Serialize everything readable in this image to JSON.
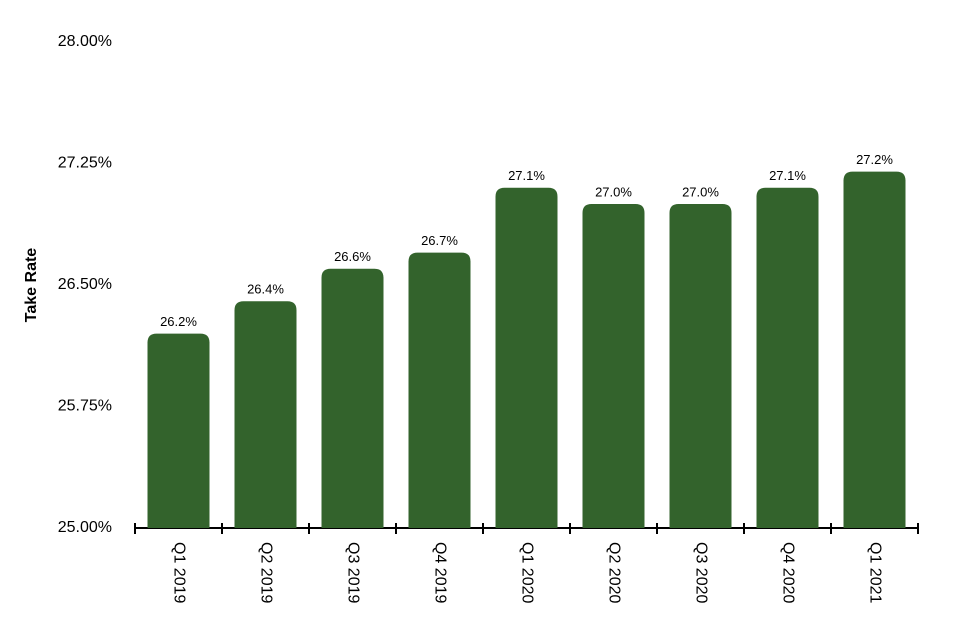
{
  "chart_data": {
    "type": "bar",
    "y_label": "Take Rate",
    "categories": [
      "Q1 2019",
      "Q2 2019",
      "Q3 2019",
      "Q4 2019",
      "Q1 2020",
      "Q2 2020",
      "Q3 2020",
      "Q4 2020",
      "Q1 2021"
    ],
    "values": [
      26.2,
      26.4,
      26.6,
      26.7,
      27.1,
      27.0,
      27.0,
      27.1,
      27.2
    ],
    "value_labels": [
      "26.2%",
      "26.4%",
      "26.6%",
      "26.7%",
      "27.1%",
      "27.0%",
      "27.0%",
      "27.1%",
      "27.2%"
    ],
    "color": "#33632c",
    "ylim": [
      25,
      28
    ],
    "yticks": [
      {
        "value": 25,
        "label": "25.00%"
      },
      {
        "value": 25.75,
        "label": "25.75%"
      },
      {
        "value": 26.5,
        "label": "26.50%"
      },
      {
        "value": 27.25,
        "label": "27.25%"
      },
      {
        "value": 28,
        "label": "28.00%"
      }
    ],
    "grid": false
  }
}
